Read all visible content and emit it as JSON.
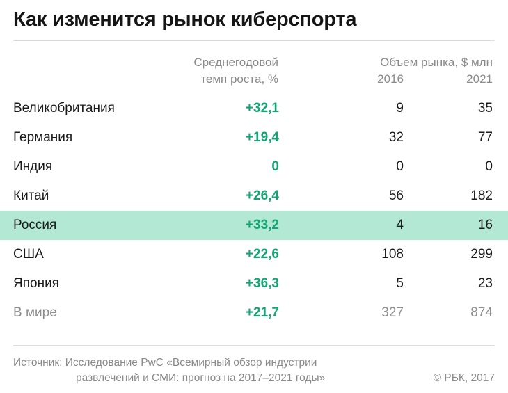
{
  "title": "Как изменится рынок киберспорта",
  "headers": {
    "growth_line1": "Среднегодовой",
    "growth_line2": "темп роста, %",
    "volume": "Объем рынка, $ млн",
    "year1": "2016",
    "year2": "2021"
  },
  "chart_data": {
    "type": "table",
    "title": "Как изменится рынок киберспорта",
    "columns": [
      "Среднегодовой темп роста, %",
      "Объем рынка, $ млн 2016",
      "Объем рынка, $ млн 2021"
    ],
    "rows": [
      {
        "country": "Великобритания",
        "growth": "+32,1",
        "v2016": "9",
        "v2021": "35"
      },
      {
        "country": "Германия",
        "growth": "+19,4",
        "v2016": "32",
        "v2021": "77"
      },
      {
        "country": "Индия",
        "growth": "0",
        "v2016": "0",
        "v2021": "0"
      },
      {
        "country": "Китай",
        "growth": "+26,4",
        "v2016": "56",
        "v2021": "182"
      },
      {
        "country": "Россия",
        "growth": "+33,2",
        "v2016": "4",
        "v2021": "16",
        "highlight": true
      },
      {
        "country": "США",
        "growth": "+22,6",
        "v2016": "108",
        "v2021": "299"
      },
      {
        "country": "Япония",
        "growth": "+36,3",
        "v2016": "5",
        "v2021": "23"
      },
      {
        "country": "В мире",
        "growth": "+21,7",
        "v2016": "327",
        "v2021": "874",
        "muted": true
      }
    ]
  },
  "colors": {
    "growth_text": "#11a775",
    "highlight_row": "#b3e8d5",
    "muted_text": "#8e8e8e"
  },
  "footer": {
    "source_line1": "Источник: Исследование PwC «Всемирный обзор индустрии",
    "source_line2": "развлечений и СМИ: прогноз на 2017–2021 годы»",
    "copyright": "© РБК, 2017"
  }
}
